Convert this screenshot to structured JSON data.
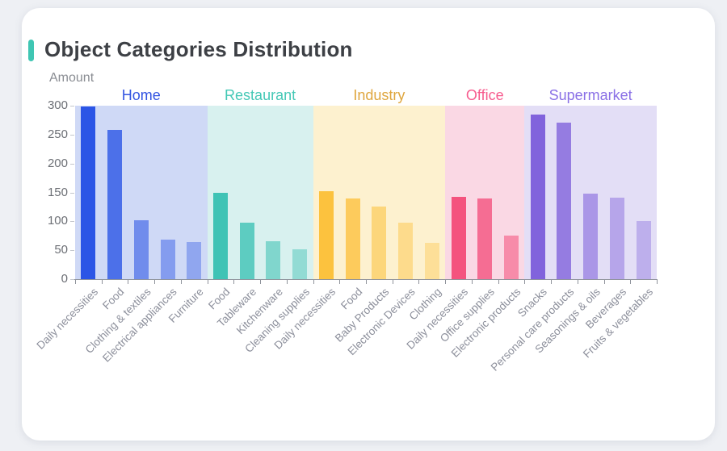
{
  "page": {
    "background_color": "#eef0f4",
    "card_background_color": "#ffffff"
  },
  "header": {
    "title": "Object Categories Distribution",
    "title_color": "#3d4045",
    "accent_color": "#3fc6b3"
  },
  "chart_data": {
    "type": "bar",
    "title": "Object Categories Distribution",
    "xlabel": "",
    "ylabel": "Amount",
    "ylim": [
      0,
      300
    ],
    "yticks": [
      0,
      50,
      100,
      150,
      200,
      250,
      300
    ],
    "grid": false,
    "legend_position": "group-labels-above-plot",
    "x_labels_rotation_deg": 45,
    "bar_opacity_steps": [
      1,
      0.8,
      0.58,
      0.46,
      0.38
    ],
    "axis_color": "#8f939b",
    "ytick_label_color": "#6d7076",
    "xtick_label_color": "#8c8f9b",
    "ylabel_color": "#8a8d93",
    "groups": [
      {
        "name": "Home",
        "label_color": "#3355e2",
        "band_color": "#cfd9f6",
        "bar_color": "#2b55e6",
        "categories": [
          "Daily necessities",
          "Food",
          "Clothing & textiles",
          "Electrical appliances",
          "Furniture"
        ],
        "values": [
          298,
          258,
          102,
          69,
          64
        ]
      },
      {
        "name": "Restaurant",
        "label_color": "#45c8b6",
        "band_color": "#d8f1ef",
        "bar_color": "#3fc3b5",
        "categories": [
          "Food",
          "Tableware",
          "Kitchenware",
          "Cleaning supplies"
        ],
        "values": [
          149,
          97,
          65,
          51
        ]
      },
      {
        "name": "Industry",
        "label_color": "#dfa63e",
        "band_color": "#fdf1cf",
        "bar_color": "#fcc23e",
        "categories": [
          "Daily necessities",
          "Food",
          "Baby Products",
          "Electronic Devices",
          "Clothing"
        ],
        "values": [
          152,
          139,
          126,
          98,
          63
        ]
      },
      {
        "name": "Office",
        "label_color": "#f75b8e",
        "band_color": "#fad8e4",
        "bar_color": "#f4537e",
        "categories": [
          "Daily necessities",
          "Office supplies",
          "Electronic products"
        ],
        "values": [
          143,
          139,
          75
        ]
      },
      {
        "name": "Supermarket",
        "label_color": "#8a70e6",
        "band_color": "#e3def6",
        "bar_color": "#8163dc",
        "categories": [
          "Snacks",
          "Personal care products",
          "Seasonings & oils",
          "Beverages",
          "Fruits & vegetables"
        ],
        "values": [
          285,
          271,
          148,
          141,
          101
        ]
      }
    ]
  }
}
